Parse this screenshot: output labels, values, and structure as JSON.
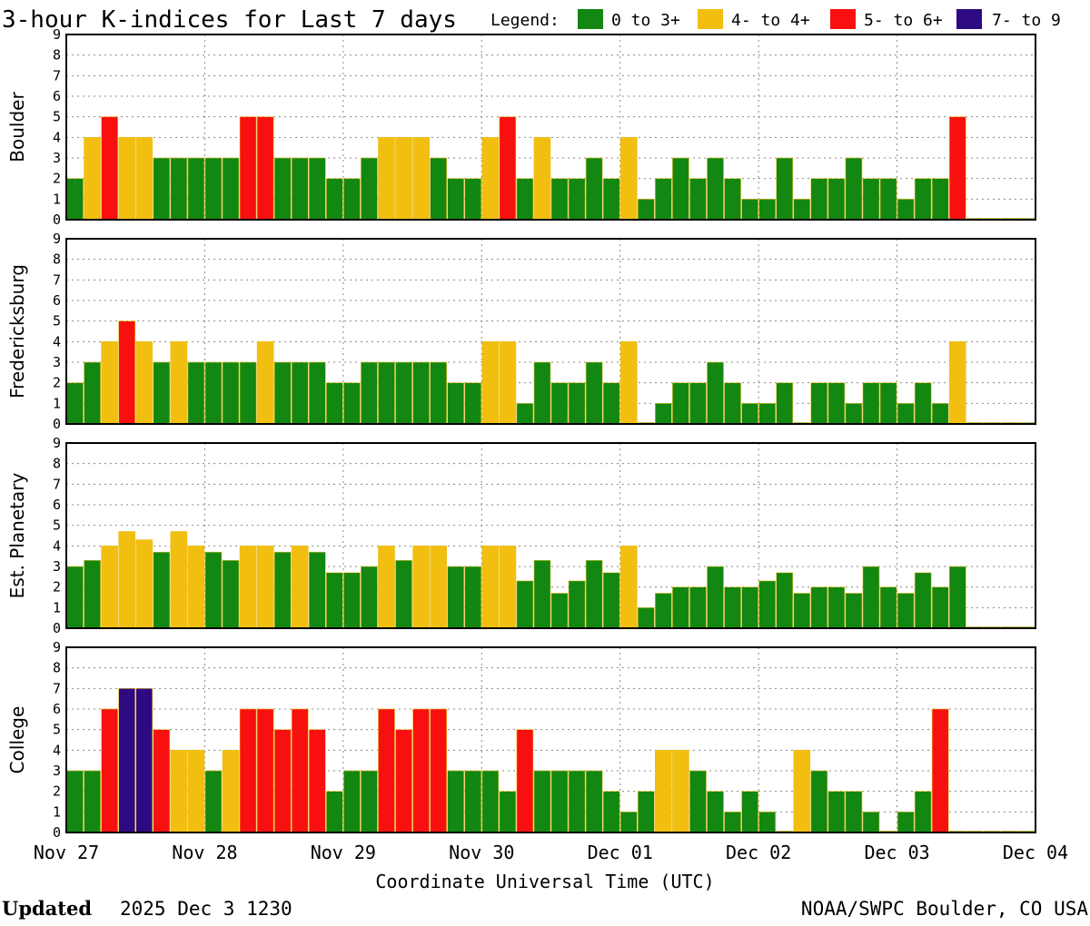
{
  "title": "3-hour K-indices for Last 7 days",
  "legend": {
    "label": "Legend:",
    "items": [
      {
        "label": "0 to 3+",
        "color": "#128712"
      },
      {
        "label": "4- to 4+",
        "color": "#f2bf10"
      },
      {
        "label": "5- to 6+",
        "color": "#f81010"
      },
      {
        "label": "7- to 9",
        "color": "#2d0a82"
      }
    ]
  },
  "footer": {
    "updated_label": "Updated",
    "updated_value": "2025 Dec  3 1230",
    "credit": "NOAA/SWPC Boulder, CO USA"
  },
  "chart_data": {
    "type": "bar",
    "xlabel": "Coordinate Universal Time (UTC)",
    "x_tick_labels": [
      "Nov 27",
      "Nov 28",
      "Nov 29",
      "Nov 30",
      "Dec 01",
      "Dec 02",
      "Dec 03",
      "Dec 04"
    ],
    "bins_per_day": 8,
    "ylim": [
      0,
      9
    ],
    "y_ticks": [
      0,
      1,
      2,
      3,
      4,
      5,
      6,
      7,
      8,
      9
    ],
    "grid": true,
    "color_thresholds": [
      {
        "max": 3.9,
        "color": "#128712"
      },
      {
        "max": 4.9,
        "color": "#f2bf10"
      },
      {
        "max": 6.9,
        "color": "#f81010"
      },
      {
        "max": 9,
        "color": "#2d0a82"
      }
    ],
    "panels": [
      {
        "name": "Boulder",
        "values": [
          2,
          4,
          5,
          4,
          4,
          3,
          3,
          3,
          3,
          3,
          5,
          5,
          3,
          3,
          3,
          2,
          2,
          3,
          4,
          4,
          4,
          3,
          2,
          2,
          4,
          5,
          2,
          4,
          2,
          2,
          3,
          2,
          4,
          1,
          2,
          3,
          2,
          3,
          2,
          1,
          1,
          3,
          1,
          2,
          2,
          3,
          2,
          2,
          1,
          2,
          2,
          5,
          0,
          0,
          0,
          0
        ]
      },
      {
        "name": "Fredericksburg",
        "values": [
          2,
          3,
          4,
          5,
          4,
          3,
          4,
          3,
          3,
          3,
          3,
          4,
          3,
          3,
          3,
          2,
          2,
          3,
          3,
          3,
          3,
          3,
          2,
          2,
          4,
          4,
          1,
          3,
          2,
          2,
          3,
          2,
          4,
          0,
          1,
          2,
          2,
          3,
          2,
          1,
          1,
          2,
          0,
          2,
          2,
          1,
          2,
          2,
          1,
          2,
          1,
          4,
          0,
          0,
          0,
          0
        ]
      },
      {
        "name": "Est. Planetary",
        "values": [
          3,
          3.3,
          4,
          4.7,
          4.3,
          3.7,
          4.7,
          4,
          3.7,
          3.3,
          4,
          4,
          3.7,
          4,
          3.7,
          2.7,
          2.7,
          3,
          4,
          3.3,
          4,
          4,
          3,
          3,
          4,
          4,
          2.3,
          3.3,
          1.7,
          2.3,
          3.3,
          2.7,
          4,
          1,
          1.7,
          2,
          2,
          3,
          2,
          2,
          2.3,
          2.7,
          1.7,
          2,
          2,
          1.7,
          3,
          2,
          1.7,
          2.7,
          2,
          3,
          0,
          0,
          0,
          0
        ]
      },
      {
        "name": "College",
        "values": [
          3,
          3,
          6,
          7,
          7,
          5,
          4,
          4,
          3,
          4,
          6,
          6,
          5,
          6,
          5,
          2,
          3,
          3,
          6,
          5,
          6,
          6,
          3,
          3,
          3,
          2,
          5,
          3,
          3,
          3,
          3,
          2,
          1,
          2,
          4,
          4,
          3,
          2,
          1,
          2,
          1,
          0,
          4,
          3,
          2,
          2,
          1,
          0,
          1,
          2,
          6,
          0,
          0,
          0,
          0,
          0
        ]
      }
    ]
  }
}
